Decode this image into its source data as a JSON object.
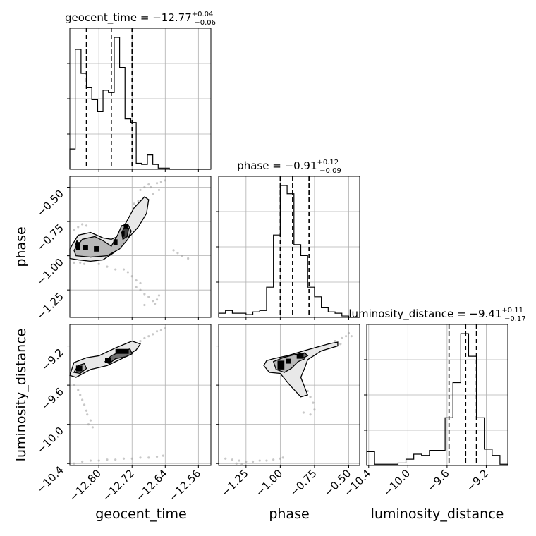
{
  "chart_data": [
    {
      "type": "histogram",
      "param": "geocent_time",
      "title": {
        "prefix": "geocent_time = ",
        "value": "−12.77",
        "plus": "+0.04",
        "minus": "−0.06"
      },
      "xlim": [
        -12.87,
        -12.53
      ],
      "quantiles": [
        -12.83,
        -12.77,
        -12.72
      ],
      "bins": [
        [
          -12.87,
          -12.857,
          0.17
        ],
        [
          -12.857,
          -12.843,
          1.0
        ],
        [
          -12.843,
          -12.83,
          0.8
        ],
        [
          -12.83,
          -12.817,
          0.68
        ],
        [
          -12.817,
          -12.803,
          0.58
        ],
        [
          -12.803,
          -12.79,
          0.48
        ],
        [
          -12.79,
          -12.777,
          0.66
        ],
        [
          -12.777,
          -12.763,
          0.64
        ],
        [
          -12.763,
          -12.75,
          1.1
        ],
        [
          -12.75,
          -12.737,
          0.85
        ],
        [
          -12.737,
          -12.723,
          0.42
        ],
        [
          -12.723,
          -12.71,
          0.39
        ],
        [
          -12.71,
          -12.697,
          0.05
        ],
        [
          -12.697,
          -12.683,
          0.04
        ],
        [
          -12.683,
          -12.67,
          0.12
        ],
        [
          -12.67,
          -12.657,
          0.04
        ],
        [
          -12.657,
          -12.643,
          0.01
        ],
        [
          -12.643,
          -12.63,
          0.01
        ],
        [
          -12.63,
          -12.53,
          0.0
        ]
      ]
    },
    {
      "type": "histogram",
      "param": "phase",
      "title": {
        "prefix": "phase = ",
        "value": "−0.91",
        "plus": "+0.12",
        "minus": "−0.09"
      },
      "xlim": [
        -1.45,
        -0.42
      ],
      "quantiles": [
        -1.0,
        -0.91,
        -0.79
      ],
      "bins": [
        [
          -1.45,
          -1.4,
          0.03
        ],
        [
          -1.4,
          -1.35,
          0.05
        ],
        [
          -1.35,
          -1.3,
          0.03
        ],
        [
          -1.3,
          -1.25,
          0.03
        ],
        [
          -1.25,
          -1.2,
          0.02
        ],
        [
          -1.2,
          -1.15,
          0.04
        ],
        [
          -1.15,
          -1.1,
          0.05
        ],
        [
          -1.1,
          -1.05,
          0.22
        ],
        [
          -1.05,
          -1.0,
          0.6
        ],
        [
          -1.0,
          -0.95,
          0.96
        ],
        [
          -0.95,
          -0.9,
          0.9
        ],
        [
          -0.9,
          -0.85,
          0.53
        ],
        [
          -0.85,
          -0.8,
          0.45
        ],
        [
          -0.8,
          -0.75,
          0.22
        ],
        [
          -0.75,
          -0.7,
          0.15
        ],
        [
          -0.7,
          -0.65,
          0.07
        ],
        [
          -0.65,
          -0.6,
          0.04
        ],
        [
          -0.6,
          -0.55,
          0.03
        ],
        [
          -0.55,
          -0.5,
          0.01
        ],
        [
          -0.5,
          -0.42,
          0.0
        ]
      ]
    },
    {
      "type": "histogram",
      "param": "luminosity_distance",
      "title": {
        "prefix": "luminosity_distance = ",
        "value": "−9.41",
        "plus": "+0.11",
        "minus": "−0.17"
      },
      "xlim": [
        -10.42,
        -8.98
      ],
      "quantiles": [
        -9.58,
        -9.41,
        -9.3
      ],
      "bins": [
        [
          -10.42,
          -10.34,
          0.11
        ],
        [
          -10.34,
          -10.26,
          0.01
        ],
        [
          -10.26,
          -10.18,
          0.01
        ],
        [
          -10.18,
          -10.1,
          0.01
        ],
        [
          -10.1,
          -10.02,
          0.02
        ],
        [
          -10.02,
          -9.94,
          0.05
        ],
        [
          -9.94,
          -9.86,
          0.09
        ],
        [
          -9.86,
          -9.78,
          0.08
        ],
        [
          -9.78,
          -9.7,
          0.12
        ],
        [
          -9.7,
          -9.62,
          0.12
        ],
        [
          -9.62,
          -9.54,
          0.38
        ],
        [
          -9.54,
          -9.46,
          0.66
        ],
        [
          -9.46,
          -9.38,
          1.05
        ],
        [
          -9.38,
          -9.3,
          0.87
        ],
        [
          -9.3,
          -9.22,
          0.38
        ],
        [
          -9.22,
          -9.14,
          0.13
        ],
        [
          -9.14,
          -9.06,
          0.08
        ],
        [
          -9.06,
          -8.98,
          0.01
        ]
      ]
    },
    {
      "type": "scatter_contour",
      "x_param": "geocent_time",
      "y_param": "phase",
      "xlim": [
        -12.87,
        -12.53
      ],
      "ylim": [
        -1.45,
        -0.42
      ],
      "contours": [
        [
          [
            -12.87,
            -0.95
          ],
          [
            -12.85,
            -0.85
          ],
          [
            -12.82,
            -0.83
          ],
          [
            -12.79,
            -0.87
          ],
          [
            -12.77,
            -0.88
          ],
          [
            -12.755,
            -0.86
          ],
          [
            -12.735,
            -0.76
          ],
          [
            -12.715,
            -0.65
          ],
          [
            -12.69,
            -0.57
          ],
          [
            -12.68,
            -0.59
          ],
          [
            -12.685,
            -0.69
          ],
          [
            -12.705,
            -0.79
          ],
          [
            -12.735,
            -0.89
          ],
          [
            -12.76,
            -0.97
          ],
          [
            -12.79,
            -1.03
          ],
          [
            -12.82,
            -1.04
          ],
          [
            -12.85,
            -1.03
          ],
          [
            -12.87,
            -1.02
          ]
        ],
        [
          [
            -12.86,
            -0.96
          ],
          [
            -12.84,
            -0.88
          ],
          [
            -12.81,
            -0.86
          ],
          [
            -12.79,
            -0.89
          ],
          [
            -12.77,
            -0.93
          ],
          [
            -12.755,
            -0.85
          ],
          [
            -12.745,
            -0.78
          ],
          [
            -12.73,
            -0.77
          ],
          [
            -12.722,
            -0.82
          ],
          [
            -12.73,
            -0.88
          ],
          [
            -12.75,
            -0.95
          ],
          [
            -12.78,
            -1.0
          ],
          [
            -12.82,
            -1.01
          ],
          [
            -12.855,
            -1.0
          ]
        ],
        [
          [
            -12.857,
            -0.93
          ],
          [
            -12.853,
            -0.89
          ],
          [
            -12.849,
            -0.91
          ],
          [
            -12.851,
            -0.95
          ]
        ],
        [
          [
            -12.745,
            -0.83
          ],
          [
            -12.738,
            -0.79
          ],
          [
            -12.728,
            -0.8
          ],
          [
            -12.732,
            -0.86
          ],
          [
            -12.742,
            -0.88
          ]
        ]
      ],
      "dense": [
        [
          -12.765,
          -0.92,
          -12.755,
          -0.88
        ],
        [
          -12.745,
          -0.86,
          -12.738,
          -0.82
        ],
        [
          -12.855,
          -0.96,
          -12.846,
          -0.9
        ],
        [
          -12.812,
          -0.97,
          -12.8,
          -0.93
        ],
        [
          -12.838,
          -0.96,
          -12.826,
          -0.92
        ],
        [
          -12.74,
          -0.8,
          -12.73,
          -0.77
        ]
      ],
      "points": [
        [
          -12.7,
          -0.52
        ],
        [
          -12.69,
          -0.5
        ],
        [
          -12.68,
          -0.48
        ],
        [
          -12.675,
          -0.5
        ],
        [
          -12.66,
          -0.47
        ],
        [
          -12.65,
          -0.46
        ],
        [
          -12.64,
          -0.45
        ],
        [
          -12.655,
          -0.52
        ],
        [
          -12.67,
          -0.55
        ],
        [
          -12.705,
          -0.6
        ],
        [
          -12.715,
          -0.62
        ],
        [
          -12.8,
          -1.06
        ],
        [
          -12.78,
          -1.08
        ],
        [
          -12.76,
          -1.1
        ],
        [
          -12.74,
          -1.1
        ],
        [
          -12.73,
          -1.12
        ],
        [
          -12.72,
          -1.15
        ],
        [
          -12.71,
          -1.18
        ],
        [
          -12.7,
          -1.2
        ],
        [
          -12.71,
          -1.23
        ],
        [
          -12.7,
          -1.25
        ],
        [
          -12.69,
          -1.28
        ],
        [
          -12.68,
          -1.3
        ],
        [
          -12.67,
          -1.33
        ],
        [
          -12.66,
          -1.32
        ],
        [
          -12.655,
          -1.29
        ],
        [
          -12.665,
          -1.35
        ],
        [
          -12.69,
          -1.36
        ],
        [
          -12.85,
          -0.79
        ],
        [
          -12.84,
          -0.77
        ],
        [
          -12.83,
          -0.78
        ],
        [
          -12.86,
          -0.81
        ],
        [
          -12.835,
          -1.06
        ],
        [
          -12.845,
          -1.05
        ],
        [
          -12.86,
          -1.05
        ],
        [
          -12.62,
          -0.96
        ],
        [
          -12.6,
          -1.0
        ],
        [
          -12.585,
          -1.02
        ],
        [
          -12.61,
          -0.98
        ]
      ]
    },
    {
      "type": "scatter_contour",
      "x_param": "geocent_time",
      "y_param": "luminosity_distance",
      "xlim": [
        -12.87,
        -12.53
      ],
      "ylim": [
        -10.42,
        -8.98
      ],
      "contours": [
        [
          [
            -12.87,
            -9.5
          ],
          [
            -12.86,
            -9.37
          ],
          [
            -12.83,
            -9.32
          ],
          [
            -12.8,
            -9.3
          ],
          [
            -12.76,
            -9.22
          ],
          [
            -12.72,
            -9.15
          ],
          [
            -12.7,
            -9.18
          ],
          [
            -12.71,
            -9.24
          ],
          [
            -12.74,
            -9.32
          ],
          [
            -12.78,
            -9.4
          ],
          [
            -12.82,
            -9.44
          ],
          [
            -12.855,
            -9.52
          ]
        ],
        [
          [
            -12.86,
            -9.47
          ],
          [
            -12.85,
            -9.4
          ],
          [
            -12.835,
            -9.38
          ],
          [
            -12.83,
            -9.43
          ],
          [
            -12.845,
            -9.48
          ]
        ],
        [
          [
            -12.785,
            -9.36
          ],
          [
            -12.77,
            -9.3
          ],
          [
            -12.76,
            -9.28
          ],
          [
            -12.74,
            -9.25
          ],
          [
            -12.725,
            -9.23
          ],
          [
            -12.72,
            -9.28
          ],
          [
            -12.735,
            -9.31
          ],
          [
            -12.76,
            -9.33
          ],
          [
            -12.775,
            -9.38
          ]
        ]
      ],
      "dense": [
        [
          -12.76,
          -9.28,
          -12.728,
          -9.23
        ],
        [
          -12.785,
          -9.37,
          -12.77,
          -9.32
        ],
        [
          -12.855,
          -9.46,
          -12.84,
          -9.4
        ]
      ],
      "points": [
        [
          -12.7,
          -9.15
        ],
        [
          -12.69,
          -9.12
        ],
        [
          -12.68,
          -9.1
        ],
        [
          -12.67,
          -9.08
        ],
        [
          -12.66,
          -9.05
        ],
        [
          -12.65,
          -9.04
        ],
        [
          -12.64,
          -9.02
        ],
        [
          -12.86,
          -9.6
        ],
        [
          -12.85,
          -9.65
        ],
        [
          -12.845,
          -9.7
        ],
        [
          -12.84,
          -9.75
        ],
        [
          -12.835,
          -9.8
        ],
        [
          -12.83,
          -9.86
        ],
        [
          -12.828,
          -9.9
        ],
        [
          -12.82,
          -9.96
        ],
        [
          -12.825,
          -10.0
        ],
        [
          -12.815,
          -10.03
        ],
        [
          -12.86,
          -10.4
        ],
        [
          -12.84,
          -10.38
        ],
        [
          -12.82,
          -10.37
        ],
        [
          -12.8,
          -10.37
        ],
        [
          -12.78,
          -10.36
        ],
        [
          -12.76,
          -10.36
        ],
        [
          -12.74,
          -10.35
        ],
        [
          -12.72,
          -10.35
        ],
        [
          -12.7,
          -10.34
        ],
        [
          -12.68,
          -10.34
        ],
        [
          -12.66,
          -10.33
        ],
        [
          -12.645,
          -10.32
        ]
      ]
    },
    {
      "type": "scatter_contour",
      "x_param": "phase",
      "y_param": "luminosity_distance",
      "xlim": [
        -1.45,
        -0.42
      ],
      "ylim": [
        -10.42,
        -8.98
      ],
      "contours": [
        [
          [
            -1.1,
            -9.35
          ],
          [
            -1.05,
            -9.33
          ],
          [
            -0.95,
            -9.3
          ],
          [
            -0.83,
            -9.25
          ],
          [
            -0.65,
            -9.18
          ],
          [
            -0.58,
            -9.16
          ],
          [
            -0.58,
            -9.2
          ],
          [
            -0.7,
            -9.25
          ],
          [
            -0.8,
            -9.34
          ],
          [
            -0.82,
            -9.42
          ],
          [
            -0.85,
            -9.52
          ],
          [
            -0.8,
            -9.7
          ],
          [
            -0.85,
            -9.72
          ],
          [
            -0.93,
            -9.6
          ],
          [
            -1.0,
            -9.48
          ],
          [
            -1.08,
            -9.47
          ],
          [
            -1.12,
            -9.4
          ]
        ],
        [
          [
            -1.05,
            -9.36
          ],
          [
            -0.98,
            -9.32
          ],
          [
            -0.9,
            -9.29
          ],
          [
            -0.82,
            -9.27
          ],
          [
            -0.82,
            -9.33
          ],
          [
            -0.87,
            -9.36
          ],
          [
            -0.92,
            -9.43
          ],
          [
            -0.97,
            -9.47
          ],
          [
            -1.03,
            -9.44
          ]
        ],
        [
          [
            -0.85,
            -9.29
          ],
          [
            -0.82,
            -9.27
          ],
          [
            -0.8,
            -9.3
          ],
          [
            -0.83,
            -9.32
          ]
        ]
      ],
      "dense": [
        [
          -1.02,
          -9.44,
          -0.97,
          -9.35
        ],
        [
          -0.96,
          -9.38,
          -0.92,
          -9.33
        ],
        [
          -0.88,
          -9.33,
          -0.83,
          -9.28
        ]
      ],
      "points": [
        [
          -0.6,
          -9.15
        ],
        [
          -0.55,
          -9.12
        ],
        [
          -0.52,
          -9.1
        ],
        [
          -0.5,
          -9.07
        ],
        [
          -0.48,
          -9.1
        ],
        [
          -0.56,
          -9.18
        ],
        [
          -0.88,
          -9.55
        ],
        [
          -0.85,
          -9.62
        ],
        [
          -0.8,
          -9.66
        ],
        [
          -0.78,
          -9.72
        ],
        [
          -0.76,
          -9.78
        ],
        [
          -0.75,
          -9.85
        ],
        [
          -0.78,
          -9.9
        ],
        [
          -0.83,
          -9.88
        ],
        [
          -1.4,
          -10.35
        ],
        [
          -1.35,
          -10.36
        ],
        [
          -1.3,
          -10.37
        ],
        [
          -1.25,
          -10.38
        ],
        [
          -1.2,
          -10.38
        ],
        [
          -1.15,
          -10.37
        ],
        [
          -1.1,
          -10.37
        ],
        [
          -1.05,
          -10.36
        ],
        [
          -1.0,
          -10.35
        ],
        [
          -0.98,
          -10.34
        ],
        [
          -1.32,
          -10.4
        ],
        [
          -1.28,
          -10.41
        ]
      ]
    }
  ],
  "axes": {
    "labels": {
      "geocent_time": "geocent_time",
      "phase": "phase",
      "luminosity_distance": "luminosity_distance"
    },
    "ticks": {
      "geocent_time": [
        {
          "v": -12.8,
          "label": "−12.80"
        },
        {
          "v": -12.72,
          "label": "−12.72"
        },
        {
          "v": -12.64,
          "label": "−12.64"
        },
        {
          "v": -12.56,
          "label": "−12.56"
        }
      ],
      "phase": [
        {
          "v": -1.25,
          "label": "−1.25"
        },
        {
          "v": -1.0,
          "label": "−1.00"
        },
        {
          "v": -0.75,
          "label": "−0.75"
        },
        {
          "v": -0.5,
          "label": "−0.50"
        }
      ],
      "luminosity_distance": [
        {
          "v": -10.4,
          "label": "−10.4"
        },
        {
          "v": -10.0,
          "label": "−10.0"
        },
        {
          "v": -9.6,
          "label": "−9.6"
        },
        {
          "v": -9.2,
          "label": "−9.2"
        }
      ]
    }
  }
}
